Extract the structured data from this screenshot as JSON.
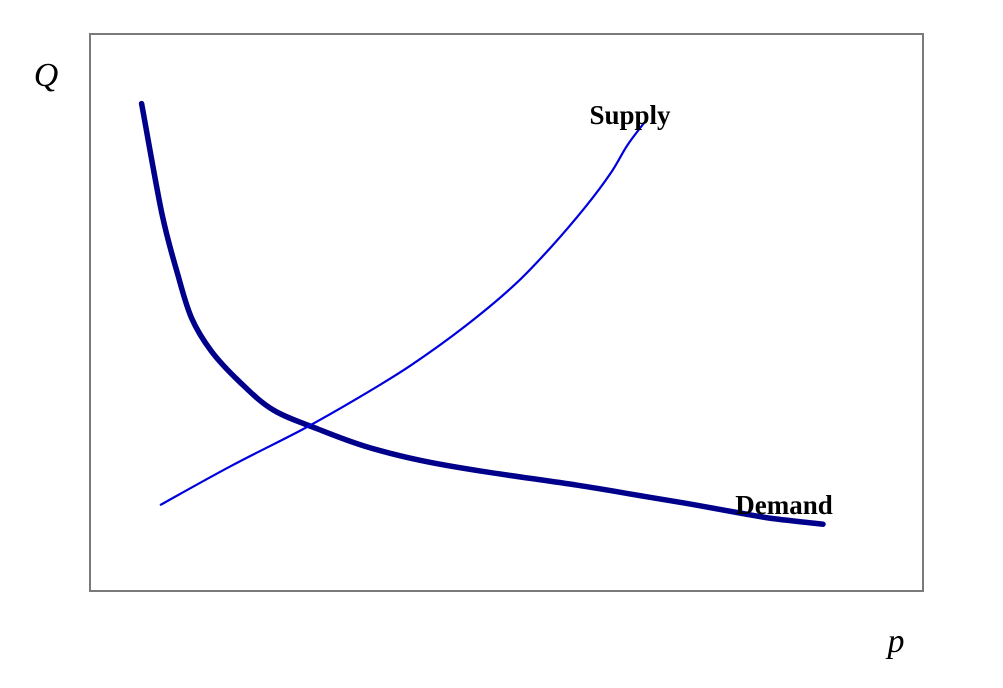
{
  "chart_data": {
    "type": "line",
    "title": "",
    "xlabel": "p",
    "ylabel": "Q",
    "grid": false,
    "legend": "none",
    "xlim": [
      0,
      100
    ],
    "ylim": [
      0,
      100
    ],
    "series": [
      {
        "name": "Demand",
        "color": "#00008B",
        "x": [
          6.2,
          8.6,
          10.5,
          12.2,
          14.6,
          18.0,
          22.0,
          27.5,
          33.0,
          39.5,
          47.0,
          58.5,
          66.5,
          72.5,
          78.0,
          82.0,
          88.0
        ],
        "y": [
          87.5,
          68.0,
          57.0,
          49.0,
          43.0,
          37.5,
          32.5,
          29.0,
          26.0,
          23.5,
          21.5,
          19.0,
          17.0,
          15.5,
          14.0,
          13.0,
          12.0
        ]
      },
      {
        "name": "Supply",
        "color": "#0000DD",
        "x": [
          8.5,
          17.0,
          25.5,
          32.0,
          38.5,
          45.0,
          51.0,
          55.5,
          59.5,
          62.5,
          64.5,
          66.5
        ],
        "y": [
          15.5,
          22.5,
          29.0,
          34.5,
          40.5,
          47.5,
          55.0,
          62.0,
          69.0,
          75.0,
          80.0,
          84.0
        ]
      }
    ]
  }
}
